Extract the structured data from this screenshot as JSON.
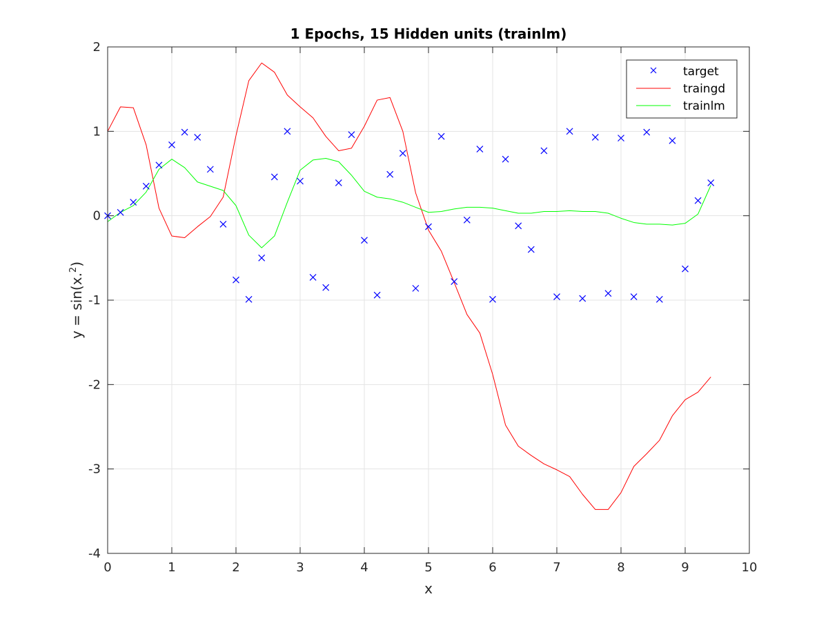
{
  "chart_data": {
    "type": "line",
    "title": "1 Epochs, 15 Hidden units (trainlm)",
    "xlabel": "x",
    "ylabel_main": "y = sin(x.",
    "ylabel_sup": "2",
    "ylabel_end": ")",
    "xlim": [
      0,
      10
    ],
    "ylim": [
      -4,
      2
    ],
    "xticks": [
      0,
      1,
      2,
      3,
      4,
      5,
      6,
      7,
      8,
      9,
      10
    ],
    "yticks": [
      -4,
      -3,
      -2,
      -1,
      0,
      1,
      2
    ],
    "grid": true,
    "legend_position": "top-right",
    "x": [
      0,
      0.2,
      0.4,
      0.6,
      0.8,
      1.0,
      1.2,
      1.4,
      1.6,
      1.8,
      2.0,
      2.2,
      2.4,
      2.6,
      2.8,
      3.0,
      3.2,
      3.4,
      3.6,
      3.8,
      4.0,
      4.2,
      4.4,
      4.6,
      4.8,
      5.0,
      5.2,
      5.4,
      5.6,
      5.8,
      6.0,
      6.2,
      6.4,
      6.6,
      6.8,
      7.0,
      7.2,
      7.4,
      7.6,
      7.8,
      8.0,
      8.2,
      8.4,
      8.6,
      8.8,
      9.0,
      9.2,
      9.4
    ],
    "series": [
      {
        "name": "target",
        "style": "marker",
        "color": "#0000ff",
        "values": [
          0.0,
          0.04,
          0.16,
          0.35,
          0.6,
          0.84,
          0.99,
          0.93,
          0.55,
          -0.1,
          -0.76,
          -0.99,
          -0.5,
          0.46,
          1.0,
          0.41,
          -0.73,
          -0.85,
          0.39,
          0.96,
          -0.29,
          -0.94,
          0.49,
          0.74,
          -0.86,
          -0.13,
          0.94,
          -0.78,
          -0.05,
          0.79,
          -0.99,
          0.67,
          -0.12,
          -0.4,
          0.77,
          -0.96,
          1.0,
          -0.98,
          0.93,
          -0.92,
          0.92,
          -0.96,
          0.99,
          -0.99,
          0.89,
          -0.63,
          0.18,
          0.39
        ]
      },
      {
        "name": "traingd",
        "style": "line",
        "color": "#ff0000",
        "values": [
          1.0,
          1.29,
          1.28,
          0.84,
          0.09,
          -0.24,
          -0.26,
          -0.13,
          -0.01,
          0.22,
          0.95,
          1.6,
          1.81,
          1.7,
          1.43,
          1.29,
          1.16,
          0.94,
          0.77,
          0.8,
          1.06,
          1.37,
          1.4,
          1.0,
          0.27,
          -0.17,
          -0.42,
          -0.79,
          -1.17,
          -1.39,
          -1.88,
          -2.48,
          -2.73,
          -2.84,
          -2.94,
          -3.01,
          -3.09,
          -3.3,
          -3.48,
          -3.48,
          -3.28,
          -2.97,
          -2.82,
          -2.66,
          -2.37,
          -2.18,
          -2.09,
          -1.91
        ]
      },
      {
        "name": "trainlm",
        "style": "line",
        "color": "#00ff00",
        "values": [
          -0.07,
          0.04,
          0.12,
          0.28,
          0.55,
          0.67,
          0.57,
          0.4,
          0.35,
          0.3,
          0.12,
          -0.23,
          -0.38,
          -0.24,
          0.16,
          0.54,
          0.66,
          0.68,
          0.64,
          0.48,
          0.29,
          0.22,
          0.2,
          0.16,
          0.1,
          0.04,
          0.05,
          0.08,
          0.1,
          0.1,
          0.09,
          0.06,
          0.03,
          0.03,
          0.05,
          0.05,
          0.06,
          0.05,
          0.05,
          0.03,
          -0.03,
          -0.08,
          -0.1,
          -0.1,
          -0.11,
          -0.09,
          0.02,
          0.36
        ]
      }
    ]
  }
}
